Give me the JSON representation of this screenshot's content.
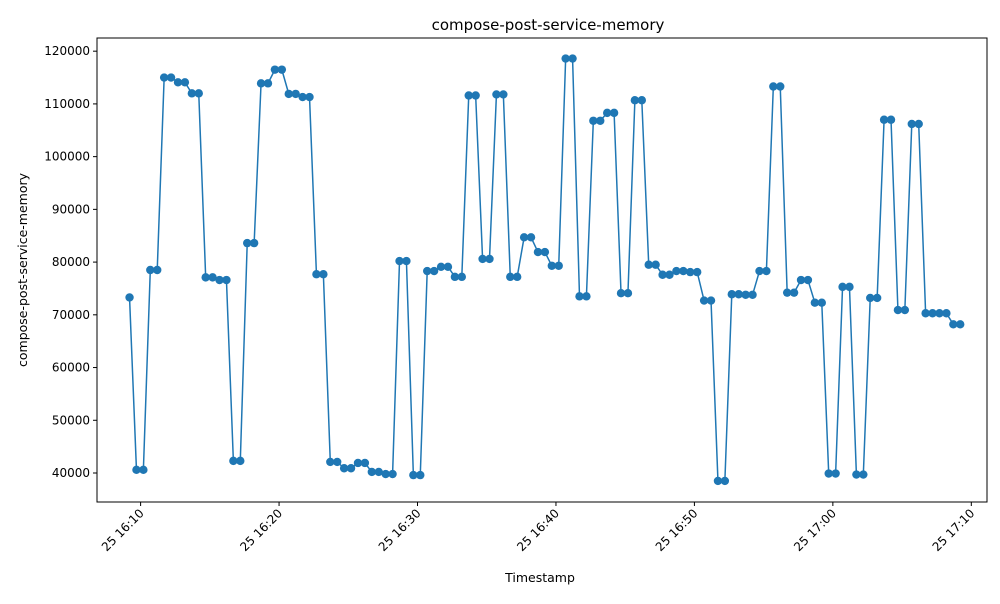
{
  "chart_data": {
    "type": "line",
    "title": "compose-post-service-memory",
    "xlabel": "Timestamp",
    "ylabel": "compose-post-service-memory",
    "grid": false,
    "legend": "none",
    "colors": {
      "line": "#1f77b4",
      "marker": "#1f77b4"
    },
    "xlim": [
      "2025-01-25 16:06:51",
      "2025-01-25 17:11:08"
    ],
    "ylim": [
      34500,
      122500
    ],
    "x_ticks": [
      {
        "value": "2025-01-25 16:10",
        "label": "25 16:10"
      },
      {
        "value": "2025-01-25 16:20",
        "label": "25 16:20"
      },
      {
        "value": "2025-01-25 16:30",
        "label": "25 16:30"
      },
      {
        "value": "2025-01-25 16:40",
        "label": "25 16:40"
      },
      {
        "value": "2025-01-25 16:50",
        "label": "25 16:50"
      },
      {
        "value": "2025-01-25 17:00",
        "label": "25 17:00"
      },
      {
        "value": "2025-01-25 17:10",
        "label": "25 17:10"
      }
    ],
    "y_ticks": [
      40000,
      50000,
      60000,
      70000,
      80000,
      90000,
      100000,
      110000,
      120000
    ],
    "series": [
      {
        "x": [
          "2025-01-25 16:09:12",
          "2025-01-25 16:09:42",
          "2025-01-25 16:10:12",
          "2025-01-25 16:10:42",
          "2025-01-25 16:11:12",
          "2025-01-25 16:11:42",
          "2025-01-25 16:12:12",
          "2025-01-25 16:12:42",
          "2025-01-25 16:13:12",
          "2025-01-25 16:13:42",
          "2025-01-25 16:14:12",
          "2025-01-25 16:14:42",
          "2025-01-25 16:15:12",
          "2025-01-25 16:15:42",
          "2025-01-25 16:16:12",
          "2025-01-25 16:16:42",
          "2025-01-25 16:17:12",
          "2025-01-25 16:17:42",
          "2025-01-25 16:18:12",
          "2025-01-25 16:18:42",
          "2025-01-25 16:19:12",
          "2025-01-25 16:19:42",
          "2025-01-25 16:20:12",
          "2025-01-25 16:20:42",
          "2025-01-25 16:21:12",
          "2025-01-25 16:21:42",
          "2025-01-25 16:22:12",
          "2025-01-25 16:22:42",
          "2025-01-25 16:23:12",
          "2025-01-25 16:23:42",
          "2025-01-25 16:24:12",
          "2025-01-25 16:24:42",
          "2025-01-25 16:25:12",
          "2025-01-25 16:25:42",
          "2025-01-25 16:26:12",
          "2025-01-25 16:26:42",
          "2025-01-25 16:27:12",
          "2025-01-25 16:27:42",
          "2025-01-25 16:28:12",
          "2025-01-25 16:28:42",
          "2025-01-25 16:29:12",
          "2025-01-25 16:29:42",
          "2025-01-25 16:30:12",
          "2025-01-25 16:30:42",
          "2025-01-25 16:31:12",
          "2025-01-25 16:31:42",
          "2025-01-25 16:32:12",
          "2025-01-25 16:32:42",
          "2025-01-25 16:33:12",
          "2025-01-25 16:33:42",
          "2025-01-25 16:34:12",
          "2025-01-25 16:34:42",
          "2025-01-25 16:35:12",
          "2025-01-25 16:35:42",
          "2025-01-25 16:36:12",
          "2025-01-25 16:36:42",
          "2025-01-25 16:37:12",
          "2025-01-25 16:37:42",
          "2025-01-25 16:38:12",
          "2025-01-25 16:38:42",
          "2025-01-25 16:39:12",
          "2025-01-25 16:39:42",
          "2025-01-25 16:40:12",
          "2025-01-25 16:40:42",
          "2025-01-25 16:41:12",
          "2025-01-25 16:41:42",
          "2025-01-25 16:42:12",
          "2025-01-25 16:42:42",
          "2025-01-25 16:43:12",
          "2025-01-25 16:43:42",
          "2025-01-25 16:44:12",
          "2025-01-25 16:44:42",
          "2025-01-25 16:45:12",
          "2025-01-25 16:45:42",
          "2025-01-25 16:46:12",
          "2025-01-25 16:46:42",
          "2025-01-25 16:47:12",
          "2025-01-25 16:47:42",
          "2025-01-25 16:48:12",
          "2025-01-25 16:48:42",
          "2025-01-25 16:49:12",
          "2025-01-25 16:49:42",
          "2025-01-25 16:50:12",
          "2025-01-25 16:50:42",
          "2025-01-25 16:51:12",
          "2025-01-25 16:51:42",
          "2025-01-25 16:52:12",
          "2025-01-25 16:52:42",
          "2025-01-25 16:53:12",
          "2025-01-25 16:53:42",
          "2025-01-25 16:54:12",
          "2025-01-25 16:54:42",
          "2025-01-25 16:55:12",
          "2025-01-25 16:55:42",
          "2025-01-25 16:56:12",
          "2025-01-25 16:56:42",
          "2025-01-25 16:57:12",
          "2025-01-25 16:57:42",
          "2025-01-25 16:58:12",
          "2025-01-25 16:58:42",
          "2025-01-25 16:59:12",
          "2025-01-25 16:59:42",
          "2025-01-25 17:00:12",
          "2025-01-25 17:00:42",
          "2025-01-25 17:01:12",
          "2025-01-25 17:01:42",
          "2025-01-25 17:02:12",
          "2025-01-25 17:02:42",
          "2025-01-25 17:03:12",
          "2025-01-25 17:03:42",
          "2025-01-25 17:04:12",
          "2025-01-25 17:04:42",
          "2025-01-25 17:05:12",
          "2025-01-25 17:05:42",
          "2025-01-25 17:06:12",
          "2025-01-25 17:06:42",
          "2025-01-25 17:07:12",
          "2025-01-25 17:07:42",
          "2025-01-25 17:08:12",
          "2025-01-25 17:08:42",
          "2025-01-25 17:09:12"
        ],
        "values": [
          73300,
          40600,
          40600,
          78500,
          78500,
          115000,
          115000,
          114100,
          114100,
          112000,
          112000,
          77100,
          77100,
          76600,
          76600,
          42300,
          42300,
          83600,
          83600,
          113900,
          113900,
          116500,
          116500,
          111900,
          111900,
          111300,
          111300,
          77700,
          77700,
          42100,
          42100,
          40900,
          40900,
          41900,
          41900,
          40200,
          40200,
          39800,
          39800,
          80200,
          80200,
          39600,
          39600,
          78300,
          78300,
          79100,
          79100,
          77200,
          77200,
          111600,
          111600,
          80600,
          80600,
          111800,
          111800,
          77200,
          77200,
          84700,
          84700,
          81900,
          81900,
          79300,
          79300,
          118600,
          118600,
          73500,
          73500,
          106800,
          106800,
          108300,
          108300,
          74100,
          74100,
          110700,
          110700,
          79500,
          79500,
          77600,
          77600,
          78300,
          78300,
          78100,
          78100,
          72700,
          72700,
          38500,
          38500,
          73900,
          73900,
          73800,
          73800,
          78300,
          78300,
          113300,
          113300,
          74200,
          74200,
          76600,
          76600,
          72300,
          72300,
          39900,
          39900,
          75300,
          75300,
          39700,
          39700,
          73200,
          73200,
          107000,
          107000,
          70900,
          70900,
          106200,
          106200,
          70300,
          70300,
          70300,
          70300,
          68200,
          68200
        ]
      }
    ]
  }
}
